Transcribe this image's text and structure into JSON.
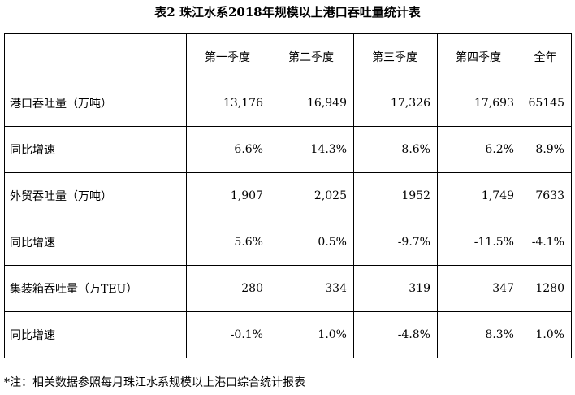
{
  "title": "表2  珠江水系2018年规模以上港口吞吐量统计表",
  "table": {
    "headers": [
      "",
      "第一季度",
      "第二季度",
      "第三季度",
      "第四季度",
      "全年"
    ],
    "rows": [
      {
        "label": "港口吞吐量（万吨）",
        "values": [
          "13,176",
          "16,949",
          "17,326",
          "17,693",
          "65145"
        ]
      },
      {
        "label": "同比增速",
        "values": [
          "6.6%",
          "14.3%",
          "8.6%",
          "6.2%",
          "8.9%"
        ]
      },
      {
        "label": "外贸吞吐量（万吨）",
        "values": [
          "1,907",
          "2,025",
          "1952",
          "1,749",
          "7633"
        ]
      },
      {
        "label": "同比增速",
        "values": [
          "5.6%",
          "0.5%",
          "-9.7%",
          "-11.5%",
          "-4.1%"
        ]
      },
      {
        "label": "集装箱吞吐量（万TEU）",
        "values": [
          "280",
          "334",
          "319",
          "347",
          "1280"
        ]
      },
      {
        "label": "同比增速",
        "values": [
          "-0.1%",
          "1.0%",
          "-4.8%",
          "8.3%",
          "1.0%"
        ]
      }
    ]
  },
  "note": "*注：相关数据参照每月珠江水系规模以上港口综合统计报表"
}
